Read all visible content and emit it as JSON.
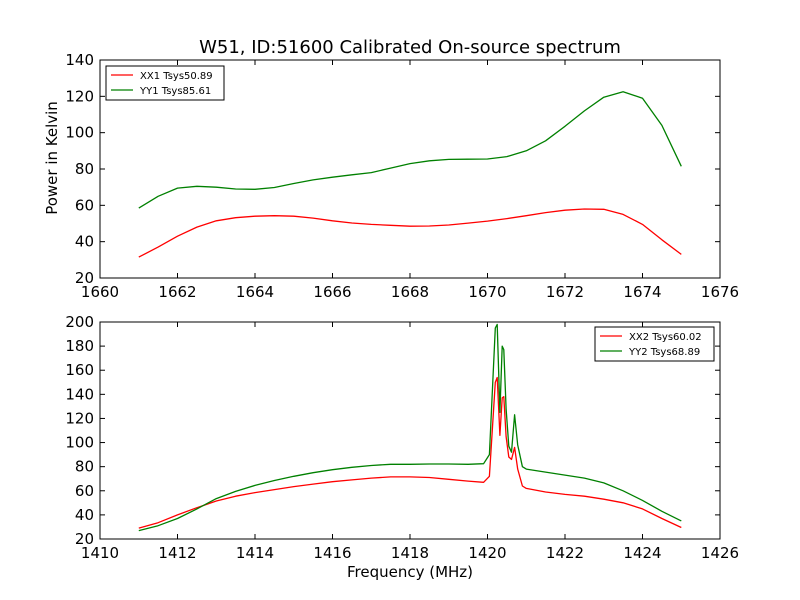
{
  "chart_data": [
    {
      "type": "line",
      "title": "W51, ID:51600 Calibrated On-source spectrum",
      "xlabel": "",
      "ylabel": "Power in Kelvin",
      "xlim": [
        1660,
        1676
      ],
      "ylim": [
        20,
        140
      ],
      "xticks": [
        1660,
        1662,
        1664,
        1666,
        1668,
        1670,
        1672,
        1674,
        1676
      ],
      "yticks": [
        20,
        40,
        60,
        80,
        100,
        120,
        140
      ],
      "legend": "top-left",
      "grid": false,
      "series": [
        {
          "name": "XX1 Tsys50.89",
          "color": "#ff0000",
          "x": [
            1661,
            1661.5,
            1662,
            1662.5,
            1663,
            1663.5,
            1664,
            1664.5,
            1665,
            1665.5,
            1666,
            1666.5,
            1667,
            1667.5,
            1668,
            1668.5,
            1669,
            1669.5,
            1670,
            1670.5,
            1671,
            1671.5,
            1672,
            1672.5,
            1673,
            1673.5,
            1674,
            1674.5,
            1675
          ],
          "y": [
            31.5,
            37,
            43,
            48,
            51.5,
            53.2,
            54,
            54.3,
            54,
            53,
            51.5,
            50.3,
            49.5,
            49,
            48.5,
            48.6,
            49.2,
            50.2,
            51.3,
            52.7,
            54.3,
            56,
            57.3,
            58,
            57.8,
            55,
            49.5,
            41,
            33
          ]
        },
        {
          "name": "YY1 Tsys85.61",
          "color": "#008000",
          "x": [
            1661,
            1661.5,
            1662,
            1662.5,
            1663,
            1663.5,
            1664,
            1664.5,
            1665,
            1665.5,
            1666,
            1666.5,
            1667,
            1667.5,
            1668,
            1668.5,
            1669,
            1669.5,
            1670,
            1670.5,
            1671,
            1671.5,
            1672,
            1672.5,
            1673,
            1673.5,
            1674,
            1674.5,
            1675
          ],
          "y": [
            58.5,
            65,
            69.5,
            70.5,
            70,
            69,
            68.8,
            69.8,
            72,
            74,
            75.5,
            76.8,
            78,
            80.5,
            83,
            84.5,
            85.3,
            85.4,
            85.5,
            86.8,
            90,
            95.5,
            103.5,
            112,
            119.5,
            122.5,
            119,
            104,
            81.5
          ]
        }
      ]
    },
    {
      "type": "line",
      "title": "",
      "xlabel": "Frequency (MHz)",
      "ylabel": "",
      "xlim": [
        1410,
        1426
      ],
      "ylim": [
        20,
        200
      ],
      "xticks": [
        1410,
        1412,
        1414,
        1416,
        1418,
        1420,
        1422,
        1424,
        1426
      ],
      "yticks": [
        20,
        40,
        60,
        80,
        100,
        120,
        140,
        160,
        180,
        200
      ],
      "legend": "top-right",
      "grid": false,
      "series": [
        {
          "name": "XX2 Tsys60.02",
          "color": "#ff0000",
          "x": [
            1411,
            1411.5,
            1412,
            1412.5,
            1413,
            1413.5,
            1414,
            1414.5,
            1415,
            1415.5,
            1416,
            1416.5,
            1417,
            1417.5,
            1418,
            1418.5,
            1419,
            1419.5,
            1419.9,
            1420.05,
            1420.2,
            1420.25,
            1420.32,
            1420.38,
            1420.42,
            1420.48,
            1420.55,
            1420.62,
            1420.7,
            1420.78,
            1420.9,
            1421,
            1421.5,
            1422,
            1422.5,
            1423,
            1423.5,
            1424,
            1424.5,
            1425
          ],
          "y": [
            29,
            33.5,
            40,
            46,
            51.5,
            55.5,
            58.5,
            61,
            63.5,
            65.5,
            67.5,
            69,
            70.5,
            71.5,
            71.5,
            71,
            69.5,
            68,
            67,
            72,
            150,
            154,
            106,
            137,
            138,
            105,
            88,
            86,
            96,
            78,
            64,
            62,
            59,
            57,
            55.5,
            53,
            50,
            45,
            37,
            29.5
          ]
        },
        {
          "name": "YY2 Tsys68.89",
          "color": "#008000",
          "x": [
            1411,
            1411.5,
            1412,
            1412.5,
            1413,
            1413.5,
            1414,
            1414.5,
            1415,
            1415.5,
            1416,
            1416.5,
            1417,
            1417.5,
            1418,
            1418.5,
            1419,
            1419.5,
            1419.9,
            1420.05,
            1420.2,
            1420.25,
            1420.32,
            1420.38,
            1420.42,
            1420.48,
            1420.55,
            1420.62,
            1420.7,
            1420.78,
            1420.9,
            1421,
            1421.5,
            1422,
            1422.5,
            1423,
            1423.5,
            1424,
            1424.5,
            1425
          ],
          "y": [
            27,
            31,
            37,
            45,
            53.5,
            59.5,
            64.5,
            68.5,
            72,
            75,
            77.5,
            79.5,
            81,
            82,
            82,
            82.2,
            82.2,
            82,
            82.5,
            90,
            195,
            198,
            125,
            180,
            177,
            128,
            97,
            92,
            123,
            98,
            80,
            78,
            75.5,
            73,
            70.5,
            66.5,
            60,
            52,
            43,
            35
          ]
        }
      ]
    }
  ]
}
